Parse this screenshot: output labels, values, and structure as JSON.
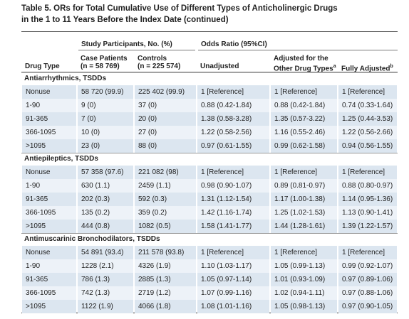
{
  "title": [
    "Table 5. ORs for Total Cumulative Use of Different Types of Anticholinergic Drugs",
    "in the 1 to 11 Years Before the Index Date (continued)"
  ],
  "header": {
    "group1": "Study Participants, No. (%)",
    "group2": "Odds Ratio (95%CI)",
    "columns": [
      {
        "lines": [
          "Drug Type"
        ]
      },
      {
        "lines": [
          "Case Patients",
          "(n = 58 769)"
        ]
      },
      {
        "lines": [
          "Controls",
          "(n = 225 574)"
        ]
      },
      {
        "lines": [
          "Unadjusted"
        ]
      },
      {
        "lines": [
          "Adjusted for the",
          "Other Drug Types"
        ],
        "note": "a"
      },
      {
        "lines": [
          "Fully Adjusted"
        ],
        "note": "b"
      }
    ]
  },
  "sections": [
    {
      "title": "Antiarrhythmics, TSDDs",
      "rows": [
        [
          "Nonuse",
          "58 720 (99.9)",
          "225 402 (99.9)",
          "1 [Reference]",
          "1 [Reference]",
          "1 [Reference]"
        ],
        [
          "1-90",
          "9 (0)",
          "37 (0)",
          "0.88 (0.42-1.84)",
          "0.88 (0.42-1.84)",
          "0.74 (0.33-1.64)"
        ],
        [
          "91-365",
          "7 (0)",
          "20 (0)",
          "1.38 (0.58-3.28)",
          "1.35 (0.57-3.22)",
          "1.25 (0.44-3.53)"
        ],
        [
          "366-1095",
          "10 (0)",
          "27 (0)",
          "1.22 (0.58-2.56)",
          "1.16 (0.55-2.46)",
          "1.22 (0.56-2.66)"
        ],
        [
          ">1095",
          "23 (0)",
          "88 (0)",
          "0.97 (0.61-1.55)",
          "0.99 (0.62-1.58)",
          "0.94 (0.56-1.55)"
        ]
      ]
    },
    {
      "title": "Antiepileptics, TSDDs",
      "rows": [
        [
          "Nonuse",
          "57 358 (97.6)",
          "221 082 (98)",
          "1 [Reference]",
          "1 [Reference]",
          "1 [Reference]"
        ],
        [
          "1-90",
          "630 (1.1)",
          "2459 (1.1)",
          "0.98 (0.90-1.07)",
          "0.89 (0.81-0.97)",
          "0.88 (0.80-0.97)"
        ],
        [
          "91-365",
          "202 (0.3)",
          "592 (0.3)",
          "1.31 (1.12-1.54)",
          "1.17 (1.00-1.38)",
          "1.14 (0.95-1.36)"
        ],
        [
          "366-1095",
          "135 (0.2)",
          "359 (0.2)",
          "1.42 (1.16-1.74)",
          "1.25 (1.02-1.53)",
          "1.13 (0.90-1.41)"
        ],
        [
          ">1095",
          "444 (0.8)",
          "1082 (0.5)",
          "1.58 (1.41-1.77)",
          "1.44 (1.28-1.61)",
          "1.39 (1.22-1.57)"
        ]
      ]
    },
    {
      "title": "Antimuscarinic Bronchodilators, TSDDs",
      "rows": [
        [
          "Nonuse",
          "54 891 (93.4)",
          "211 578 (93.8)",
          "1 [Reference]",
          "1 [Reference]",
          "1 [Reference]"
        ],
        [
          "1-90",
          "1228 (2.1)",
          "4326 (1.9)",
          "1.10 (1.03-1.17)",
          "1.05 (0.99-1.13)",
          "0.99 (0.92-1.07)"
        ],
        [
          "91-365",
          "786 (1.3)",
          "2885 (1.3)",
          "1.05 (0.97-1.14)",
          "1.01 (0.93-1.09)",
          "0.97 (0.89-1.06)"
        ],
        [
          "366-1095",
          "742 (1.3)",
          "2719 (1.2)",
          "1.07 (0.99-1.16)",
          "1.02 (0.94-1.11)",
          "0.97 (0.88-1.06)"
        ],
        [
          ">1095",
          "1122 (1.9)",
          "4066 (1.8)",
          "1.08 (1.01-1.16)",
          "1.05 (0.98-1.13)",
          "0.97 (0.90-1.05)"
        ]
      ]
    }
  ]
}
